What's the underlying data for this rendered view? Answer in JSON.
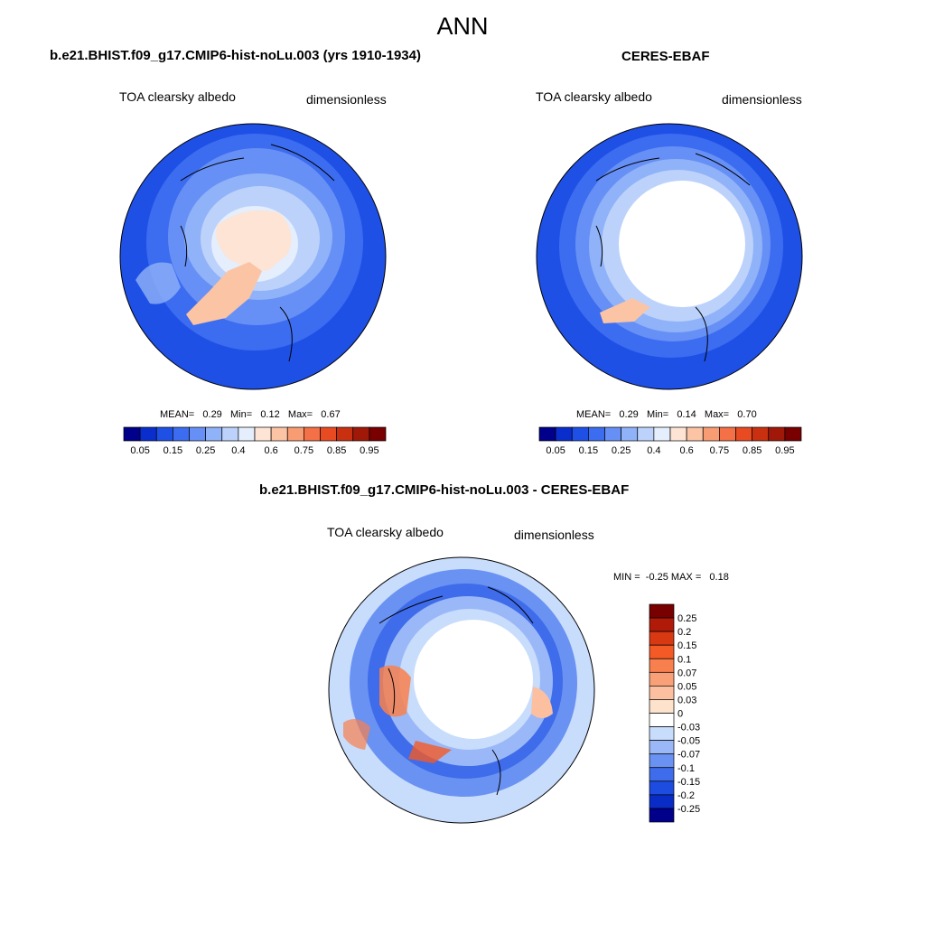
{
  "page_title": "ANN",
  "panels": [
    {
      "title": "b.e21.BHIST.f09_g17.CMIP6-hist-noLu.003 (yrs 1910-1934)",
      "variable": "TOA clearsky albedo",
      "units": "dimensionless",
      "stats": {
        "mean_label": "MEAN=",
        "mean": "0.29",
        "min_label": "Min=",
        "min": "0.12",
        "max_label": "Max=",
        "max": "0.67"
      }
    },
    {
      "title": "CERES-EBAF",
      "variable": "TOA clearsky albedo",
      "units": "dimensionless",
      "stats": {
        "mean_label": "MEAN=",
        "mean": "0.29",
        "min_label": "Min=",
        "min": "0.14",
        "max_label": "Max=",
        "max": "0.70"
      }
    },
    {
      "title": "b.e21.BHIST.f09_g17.CMIP6-hist-noLu.003 - CERES-EBAF",
      "variable": "TOA clearsky albedo",
      "units": "dimensionless",
      "stats": {
        "min_label": "MIN =",
        "min": "-0.25",
        "max_label": "MAX =",
        "max": "0.18"
      }
    }
  ],
  "colorbar_abs": {
    "labels": [
      "0.05",
      "0.15",
      "0.25",
      "0.4",
      "0.6",
      "0.75",
      "0.85",
      "0.95"
    ],
    "colors": [
      "#00008b",
      "#0a2ecc",
      "#1e50e6",
      "#3c6cf0",
      "#6690f5",
      "#90b2f8",
      "#bcd2fb",
      "#e4eefd",
      "#fde4d4",
      "#fbc4a4",
      "#f89c74",
      "#f47046",
      "#e84a22",
      "#c83010",
      "#a01808",
      "#780000"
    ]
  },
  "colorbar_diff": {
    "labels": [
      "0.25",
      "0.2",
      "0.15",
      "0.1",
      "0.07",
      "0.05",
      "0.03",
      "0",
      "-0.03",
      "-0.05",
      "-0.07",
      "-0.1",
      "-0.15",
      "-0.2",
      "-0.25"
    ],
    "colors": [
      "#780000",
      "#b01a08",
      "#d83812",
      "#f45a26",
      "#f8804e",
      "#faa078",
      "#fcc0a0",
      "#fde2cc",
      "#ffffff",
      "#c8dcfc",
      "#9ab8f8",
      "#6a92f2",
      "#3e6cea",
      "#1c4ce0",
      "#0a2cc6",
      "#00008b"
    ]
  }
}
